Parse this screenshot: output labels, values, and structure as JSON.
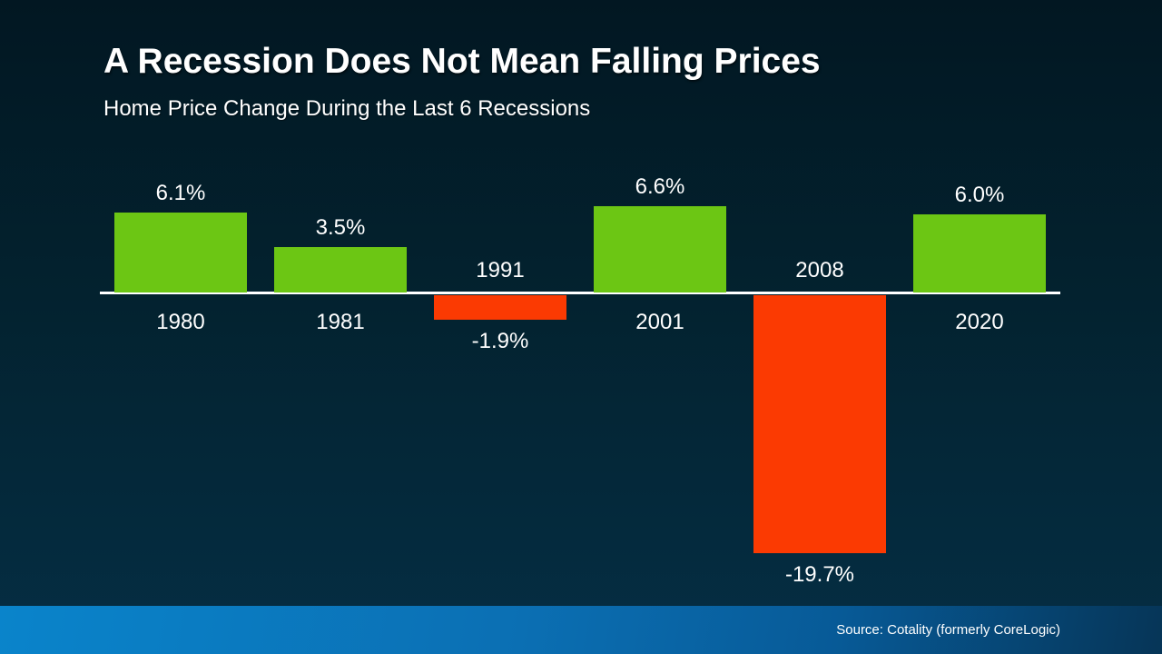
{
  "header": {
    "title": "A Recession Does Not Mean Falling Prices",
    "subtitle": "Home Price Change During the Last 6 Recessions"
  },
  "footer": {
    "source": "Source: Cotality (formerly CoreLogic)"
  },
  "colors": {
    "bg_top": "#021722",
    "bg_bottom": "#052e44",
    "positive": "#6cc614",
    "negative": "#fb3a02",
    "baseline": "#ffffff",
    "footer_left": "#0a84cb",
    "footer_mid": "#0b6fb3",
    "footer_right": "#063557",
    "text": "#ffffff"
  },
  "chart_data": {
    "type": "bar",
    "title": "A Recession Does Not Mean Falling Prices",
    "subtitle": "Home Price Change During the Last 6 Recessions",
    "categories": [
      "1980",
      "1981",
      "1991",
      "2001",
      "2008",
      "2020"
    ],
    "values": [
      6.1,
      3.5,
      -1.9,
      6.6,
      -19.7,
      6.0
    ],
    "value_labels": [
      "6.1%",
      "3.5%",
      "-1.9%",
      "6.6%",
      "-19.7%",
      "6.0%"
    ],
    "unit": "%",
    "baseline": 0,
    "ylim": [
      -19.7,
      6.6
    ],
    "grid": false,
    "legend": false,
    "bar_color_positive": "#6cc614",
    "bar_color_negative": "#fb3a02",
    "label_placement": "positive: value above bar, year below axis; negative: year above axis, value below bar"
  }
}
